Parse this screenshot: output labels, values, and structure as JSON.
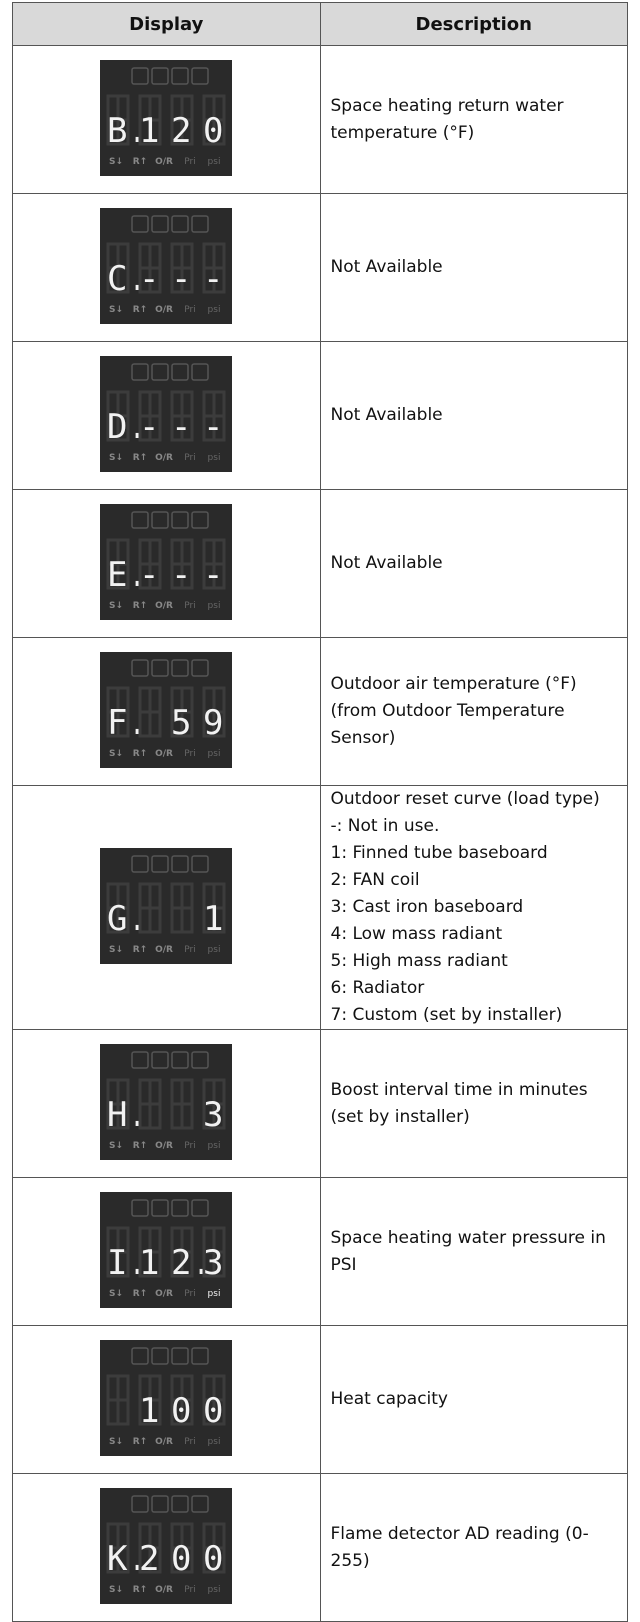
{
  "header": {
    "display": "Display",
    "description": "Description"
  },
  "indicators": [
    "S↓",
    "R↑",
    "O/R",
    "Pri",
    "psi"
  ],
  "rows": [
    {
      "display": [
        "B.",
        "1",
        "2",
        "0"
      ],
      "description": [
        "Space heating return water temperature (°F)"
      ]
    },
    {
      "display": [
        "C.",
        "-",
        "-",
        "-"
      ],
      "description": [
        "Not Available"
      ]
    },
    {
      "display": [
        "D.",
        "-",
        "-",
        "-"
      ],
      "description": [
        "Not Available"
      ]
    },
    {
      "display": [
        "E.",
        "-",
        "-",
        "-"
      ],
      "description": [
        "Not Available"
      ]
    },
    {
      "display": [
        "F.",
        null,
        "5",
        "9"
      ],
      "description": [
        "Outdoor air temperature (°F)",
        "(from Outdoor Temperature Sensor)"
      ]
    },
    {
      "display": [
        "G.",
        null,
        null,
        "1"
      ],
      "description": [
        "Outdoor reset curve (load type)",
        "-: Not in use.",
        "1: Finned tube baseboard",
        "2: FAN coil",
        "3: Cast iron baseboard",
        "4: Low mass radiant",
        "5: High mass radiant",
        "6: Radiator",
        "7: Custom (set by installer)"
      ]
    },
    {
      "display": [
        "H.",
        null,
        null,
        "3"
      ],
      "description": [
        "Boost interval time in minutes (set by installer)"
      ]
    },
    {
      "display": [
        "I.",
        "1",
        "2.",
        "3"
      ],
      "description": [
        "Space heating water pressure in PSI"
      ],
      "lit_indicator": 4
    },
    {
      "display": [
        null,
        "1",
        "0",
        "0"
      ],
      "description": [
        "Heat capacity"
      ]
    },
    {
      "display": [
        "K.",
        "2",
        "0",
        "0"
      ],
      "description": [
        "Flame detector AD reading (0-255)"
      ]
    }
  ]
}
